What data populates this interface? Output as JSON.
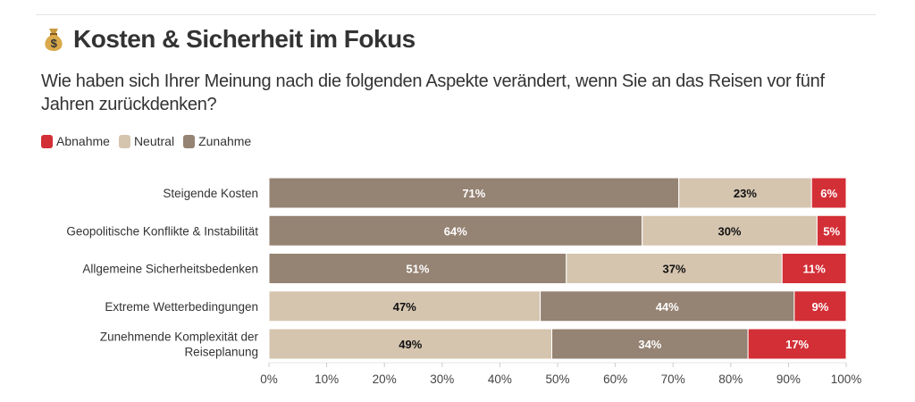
{
  "title": "Kosten & Sicherheit im Fokus",
  "title_icon": "money-bag-icon",
  "subtitle": "Wie haben sich Ihrer Meinung nach die folgenden Aspekte verändert, wenn Sie an das Reisen vor fünf Jahren zurückdenken?",
  "chart_data": {
    "type": "bar",
    "orientation": "horizontal",
    "stacked": true,
    "legend_position": "top-left",
    "legend": [
      {
        "name": "Abnahme",
        "color": "#d32f36"
      },
      {
        "name": "Neutral",
        "color": "#d5c5af"
      },
      {
        "name": "Zunahme",
        "color": "#958373"
      }
    ],
    "categories": [
      [
        "Steigende Kosten"
      ],
      [
        "Geopolitische Konflikte & Instabilität"
      ],
      [
        "Allgemeine Sicherheitsbedenken"
      ],
      [
        "Extreme Wetterbedingungen"
      ],
      [
        "Zunehmende Komplexität der",
        "Reiseplanung"
      ]
    ],
    "rows": [
      [
        {
          "series": "Zunahme",
          "value": 71,
          "label": "71%"
        },
        {
          "series": "Neutral",
          "value": 23,
          "label": "23%"
        },
        {
          "series": "Abnahme",
          "value": 6,
          "label": "6%"
        }
      ],
      [
        {
          "series": "Zunahme",
          "value": 64,
          "label": "64%"
        },
        {
          "series": "Neutral",
          "value": 30,
          "label": "30%"
        },
        {
          "series": "Abnahme",
          "value": 5,
          "label": "5%"
        }
      ],
      [
        {
          "series": "Zunahme",
          "value": 51,
          "label": "51%"
        },
        {
          "series": "Neutral",
          "value": 37,
          "label": "37%"
        },
        {
          "series": "Abnahme",
          "value": 11,
          "label": "11%"
        }
      ],
      [
        {
          "series": "Neutral",
          "value": 47,
          "label": "47%"
        },
        {
          "series": "Zunahme",
          "value": 44,
          "label": "44%"
        },
        {
          "series": "Abnahme",
          "value": 9,
          "label": "9%"
        }
      ],
      [
        {
          "series": "Neutral",
          "value": 49,
          "label": "49%"
        },
        {
          "series": "Zunahme",
          "value": 34,
          "label": "34%"
        },
        {
          "series": "Abnahme",
          "value": 17,
          "label": "17%"
        }
      ]
    ],
    "xlim": [
      0,
      100
    ],
    "xticks": [
      "0%",
      "10%",
      "20%",
      "30%",
      "40%",
      "50%",
      "60%",
      "70%",
      "80%",
      "90%",
      "100%"
    ],
    "grid": false
  }
}
